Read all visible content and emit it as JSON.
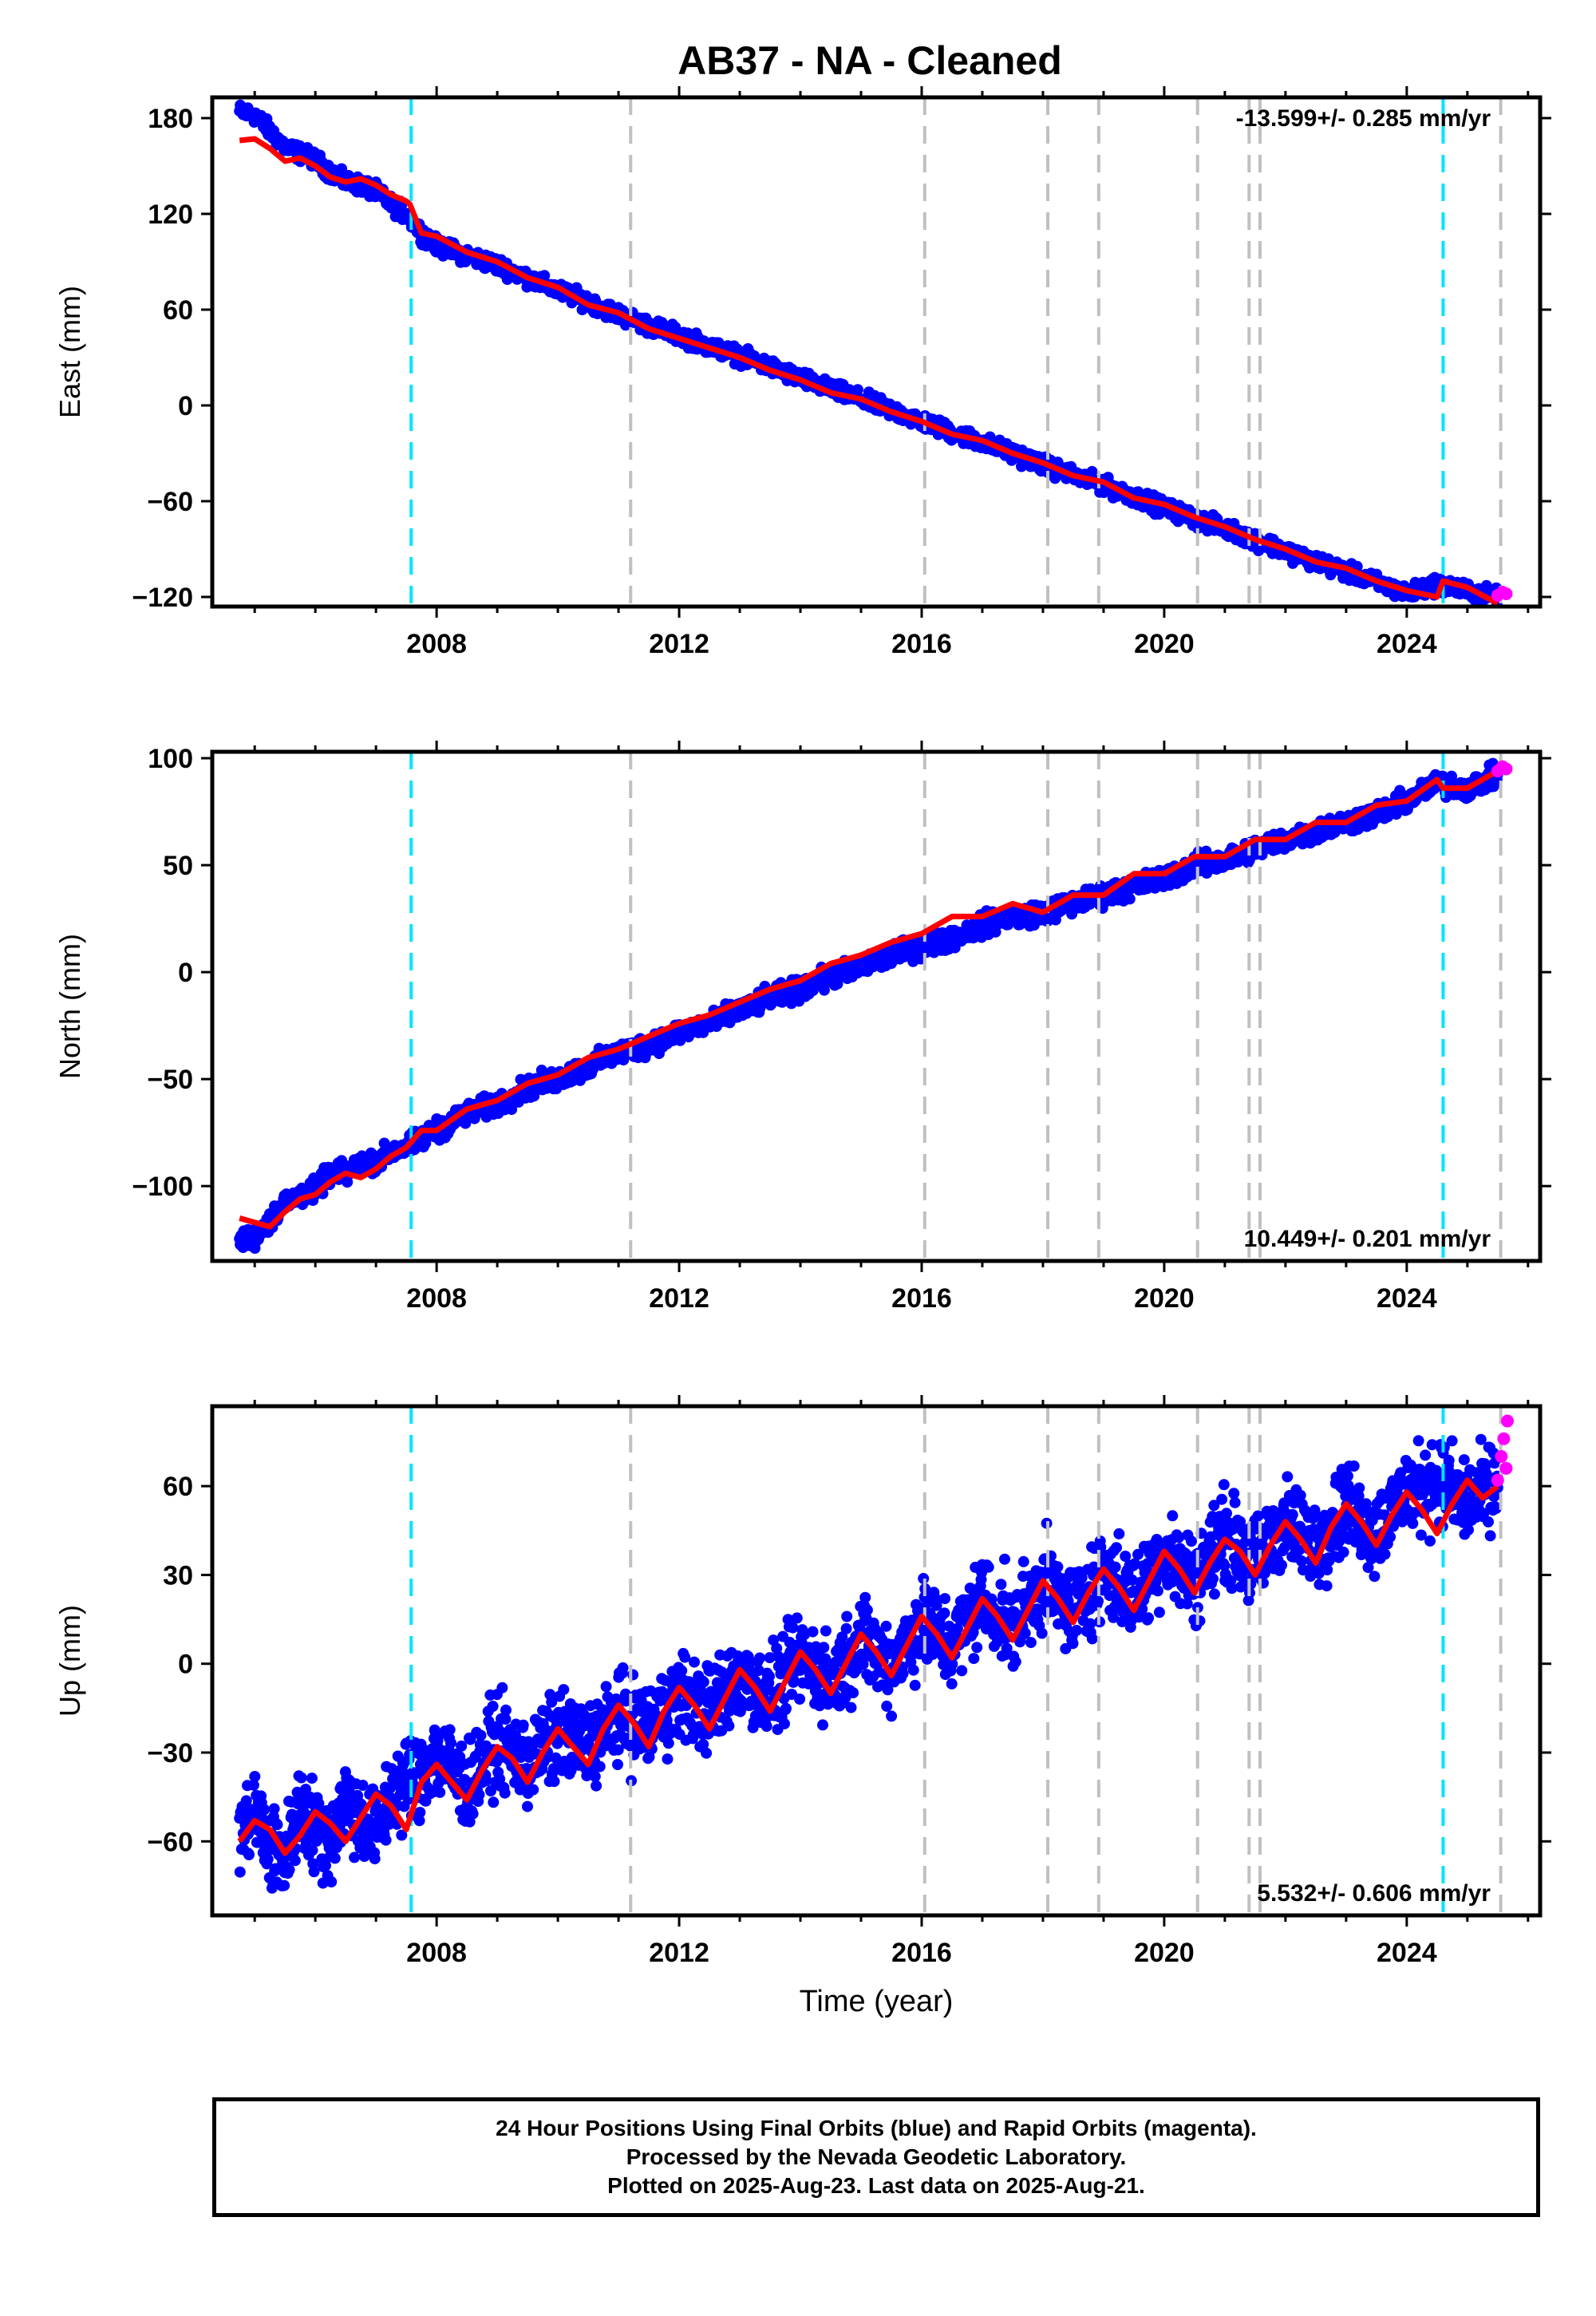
{
  "title": "AB37  - NA - Cleaned",
  "colors": {
    "final_orbits": "#0000ff",
    "rapid_orbits": "#ff00ff",
    "model": "#ff0000",
    "antenna_change": "#00e5ff",
    "equipment_change": "#c0c0c0"
  },
  "chart_data": [
    {
      "type": "scatter",
      "component": "East",
      "ylabel": "East (mm)",
      "xlabel": "",
      "xlim": [
        2004.3,
        2026.2
      ],
      "ylim": [
        -126,
        193
      ],
      "yticks": [
        -120,
        -60,
        0,
        60,
        120,
        180
      ],
      "xticks": [
        2008,
        2012,
        2016,
        2020,
        2024
      ],
      "rate_label": "-13.599+/- 0.285 mm/yr",
      "rate_label_position": "top-right",
      "grid": false,
      "series": [
        {
          "role": "final_orbits",
          "x": [
            2004.75,
            2005.0,
            2005.25,
            2005.5,
            2005.75,
            2006.0,
            2006.25,
            2006.5,
            2006.75,
            2007.0,
            2007.25,
            2007.5,
            2007.75,
            2008.0,
            2008.5,
            2009.0,
            2009.5,
            2010.0,
            2010.5,
            2011.0,
            2011.5,
            2012.0,
            2012.5,
            2013.0,
            2013.5,
            2014.0,
            2014.5,
            2015.0,
            2015.5,
            2016.0,
            2016.5,
            2017.0,
            2017.5,
            2018.0,
            2018.5,
            2019.0,
            2019.5,
            2020.0,
            2020.5,
            2021.0,
            2021.5,
            2022.0,
            2022.5,
            2023.0,
            2023.5,
            2024.0,
            2024.5,
            2025.0,
            2025.5
          ],
          "values": [
            184,
            182,
            172,
            162,
            158,
            154,
            146,
            140,
            138,
            134,
            126,
            120,
            108,
            100,
            94,
            88,
            80,
            72,
            65,
            57,
            50,
            44,
            37,
            31,
            24,
            17,
            10,
            4,
            -3,
            -10,
            -17,
            -23,
            -30,
            -37,
            -44,
            -50,
            -57,
            -64,
            -71,
            -77,
            -84,
            -91,
            -98,
            -104,
            -111,
            -118,
            -112,
            -116,
            -120
          ]
        },
        {
          "role": "rapid_orbits",
          "x": [
            2025.5,
            2025.58,
            2025.64
          ],
          "values": [
            -119,
            -117,
            -118
          ]
        },
        {
          "role": "model",
          "x": [
            2004.75,
            2005.0,
            2005.25,
            2005.5,
            2005.75,
            2006.0,
            2006.25,
            2006.5,
            2006.75,
            2007.0,
            2007.25,
            2007.5,
            2007.56,
            2007.75,
            2008.0,
            2008.5,
            2009.0,
            2009.5,
            2010.0,
            2010.5,
            2011.0,
            2011.5,
            2012.0,
            2012.5,
            2013.0,
            2013.5,
            2014.0,
            2014.5,
            2015.0,
            2015.5,
            2016.0,
            2016.5,
            2017.0,
            2017.5,
            2018.0,
            2018.5,
            2019.0,
            2019.5,
            2020.0,
            2020.5,
            2021.0,
            2021.5,
            2022.0,
            2022.5,
            2023.0,
            2023.5,
            2024.0,
            2024.5,
            2024.6,
            2025.0,
            2025.5
          ],
          "values": [
            166,
            167,
            161,
            153,
            155,
            150,
            143,
            140,
            142,
            138,
            132,
            128,
            126,
            108,
            106,
            96,
            90,
            80,
            74,
            63,
            58,
            48,
            42,
            36,
            30,
            22,
            16,
            8,
            4,
            -4,
            -10,
            -18,
            -22,
            -30,
            -36,
            -44,
            -48,
            -58,
            -62,
            -70,
            -76,
            -84,
            -90,
            -98,
            -102,
            -110,
            -116,
            -120,
            -110,
            -114,
            -124
          ]
        }
      ]
    },
    {
      "type": "scatter",
      "component": "North",
      "ylabel": "North (mm)",
      "xlabel": "",
      "xlim": [
        2004.3,
        2026.2
      ],
      "ylim": [
        -135,
        103
      ],
      "yticks": [
        -100,
        -50,
        0,
        50,
        100
      ],
      "xticks": [
        2008,
        2012,
        2016,
        2020,
        2024
      ],
      "rate_label": "10.449+/- 0.201 mm/yr",
      "rate_label_position": "bottom-right",
      "grid": false,
      "series": [
        {
          "role": "final_orbits",
          "x": [
            2004.75,
            2005.0,
            2005.25,
            2005.5,
            2005.75,
            2006.0,
            2006.25,
            2006.5,
            2006.75,
            2007.0,
            2007.25,
            2007.5,
            2007.75,
            2008.0,
            2008.5,
            2009.0,
            2009.5,
            2010.0,
            2010.5,
            2011.0,
            2011.5,
            2012.0,
            2012.5,
            2013.0,
            2013.5,
            2014.0,
            2014.5,
            2015.0,
            2015.5,
            2016.0,
            2016.5,
            2017.0,
            2017.5,
            2018.0,
            2018.5,
            2019.0,
            2019.5,
            2020.0,
            2020.5,
            2021.0,
            2021.5,
            2022.0,
            2022.5,
            2023.0,
            2023.5,
            2024.0,
            2024.5,
            2025.0,
            2025.5
          ],
          "values": [
            -126,
            -124,
            -116,
            -108,
            -104,
            -102,
            -94,
            -94,
            -90,
            -88,
            -84,
            -82,
            -78,
            -74,
            -66,
            -62,
            -54,
            -50,
            -44,
            -38,
            -34,
            -28,
            -24,
            -18,
            -12,
            -8,
            -2,
            2,
            8,
            12,
            16,
            22,
            26,
            28,
            32,
            36,
            40,
            44,
            50,
            52,
            58,
            62,
            66,
            70,
            74,
            80,
            88,
            86,
            92
          ]
        },
        {
          "role": "rapid_orbits",
          "x": [
            2025.5,
            2025.58,
            2025.64
          ],
          "values": [
            94,
            96,
            95
          ]
        },
        {
          "role": "model",
          "x": [
            2004.75,
            2005.0,
            2005.25,
            2005.5,
            2005.75,
            2006.0,
            2006.25,
            2006.5,
            2006.75,
            2007.0,
            2007.25,
            2007.5,
            2007.56,
            2007.75,
            2008.0,
            2008.5,
            2009.0,
            2009.5,
            2010.0,
            2010.5,
            2011.0,
            2011.5,
            2012.0,
            2012.5,
            2013.0,
            2013.5,
            2014.0,
            2014.5,
            2015.0,
            2015.5,
            2016.0,
            2016.5,
            2017.0,
            2017.5,
            2018.0,
            2018.5,
            2019.0,
            2019.5,
            2020.0,
            2020.5,
            2021.0,
            2021.5,
            2022.0,
            2022.5,
            2023.0,
            2023.5,
            2024.0,
            2024.5,
            2024.6,
            2025.0,
            2025.5
          ],
          "values": [
            -115,
            -117,
            -119,
            -112,
            -106,
            -104,
            -98,
            -94,
            -96,
            -92,
            -86,
            -82,
            -80,
            -74,
            -74,
            -64,
            -60,
            -52,
            -48,
            -40,
            -36,
            -30,
            -24,
            -20,
            -14,
            -8,
            -4,
            4,
            8,
            14,
            18,
            26,
            26,
            32,
            28,
            36,
            36,
            46,
            46,
            54,
            54,
            62,
            62,
            70,
            70,
            78,
            80,
            90,
            86,
            86,
            94
          ]
        }
      ]
    },
    {
      "type": "scatter",
      "component": "Up",
      "ylabel": "Up (mm)",
      "xlabel": "Time (year)",
      "xlim": [
        2004.3,
        2026.2
      ],
      "ylim": [
        -85,
        87
      ],
      "yticks": [
        -60,
        -30,
        0,
        30,
        60
      ],
      "xticks": [
        2008,
        2012,
        2016,
        2020,
        2024
      ],
      "rate_label": "5.532+/- 0.606 mm/yr",
      "rate_label_position": "bottom-right",
      "grid": false,
      "series": [
        {
          "role": "final_orbits",
          "x": [
            2004.75,
            2005.0,
            2005.25,
            2005.5,
            2005.75,
            2006.0,
            2006.25,
            2006.5,
            2006.75,
            2007.0,
            2007.25,
            2007.5,
            2007.75,
            2008.0,
            2008.5,
            2009.0,
            2009.5,
            2010.0,
            2010.5,
            2011.0,
            2011.5,
            2012.0,
            2012.5,
            2013.0,
            2013.5,
            2014.0,
            2014.5,
            2015.0,
            2015.5,
            2016.0,
            2016.5,
            2017.0,
            2017.5,
            2018.0,
            2018.5,
            2019.0,
            2019.5,
            2020.0,
            2020.5,
            2021.0,
            2021.5,
            2022.0,
            2022.5,
            2023.0,
            2023.5,
            2024.0,
            2024.5,
            2025.0,
            2025.5
          ],
          "values": [
            -58,
            -50,
            -62,
            -66,
            -48,
            -56,
            -60,
            -46,
            -52,
            -58,
            -44,
            -40,
            -36,
            -30,
            -42,
            -26,
            -34,
            -24,
            -28,
            -18,
            -22,
            -10,
            -16,
            -4,
            -12,
            2,
            -6,
            8,
            0,
            14,
            6,
            22,
            12,
            28,
            18,
            32,
            22,
            38,
            28,
            44,
            34,
            48,
            40,
            54,
            44,
            58,
            62,
            54,
            60
          ]
        },
        {
          "role": "rapid_orbits",
          "x": [
            2025.5,
            2025.56,
            2025.6,
            2025.64,
            2025.66
          ],
          "values": [
            62,
            70,
            76,
            66,
            82
          ]
        },
        {
          "role": "model",
          "x": [
            2004.75,
            2005.0,
            2005.25,
            2005.5,
            2005.75,
            2006.0,
            2006.25,
            2006.5,
            2006.75,
            2007.0,
            2007.25,
            2007.5,
            2007.75,
            2008.0,
            2008.25,
            2008.5,
            2008.75,
            2009.0,
            2009.25,
            2009.5,
            2009.75,
            2010.0,
            2010.25,
            2010.5,
            2010.75,
            2011.0,
            2011.25,
            2011.5,
            2011.75,
            2012.0,
            2012.25,
            2012.5,
            2012.75,
            2013.0,
            2013.25,
            2013.5,
            2013.75,
            2014.0,
            2014.25,
            2014.5,
            2014.75,
            2015.0,
            2015.25,
            2015.5,
            2015.75,
            2016.0,
            2016.25,
            2016.5,
            2016.75,
            2017.0,
            2017.25,
            2017.5,
            2017.75,
            2018.0,
            2018.25,
            2018.5,
            2018.75,
            2019.0,
            2019.25,
            2019.5,
            2019.75,
            2020.0,
            2020.25,
            2020.5,
            2020.75,
            2021.0,
            2021.25,
            2021.5,
            2021.75,
            2022.0,
            2022.25,
            2022.5,
            2022.75,
            2023.0,
            2023.25,
            2023.5,
            2023.75,
            2024.0,
            2024.25,
            2024.5,
            2024.75,
            2025.0,
            2025.25,
            2025.5
          ],
          "values": [
            -60,
            -53,
            -56,
            -64,
            -58,
            -50,
            -54,
            -60,
            -52,
            -44,
            -48,
            -56,
            -40,
            -34,
            -40,
            -46,
            -36,
            -28,
            -32,
            -40,
            -30,
            -22,
            -28,
            -34,
            -22,
            -14,
            -20,
            -28,
            -16,
            -8,
            -14,
            -22,
            -12,
            -2,
            -8,
            -16,
            -6,
            4,
            -2,
            -10,
            0,
            10,
            4,
            -4,
            6,
            16,
            10,
            2,
            12,
            22,
            16,
            8,
            18,
            28,
            22,
            14,
            24,
            32,
            26,
            18,
            28,
            38,
            32,
            24,
            34,
            42,
            38,
            30,
            40,
            48,
            42,
            34,
            46,
            54,
            48,
            40,
            50,
            58,
            52,
            44,
            54,
            62,
            56,
            60
          ]
        }
      ]
    }
  ],
  "antenna_changes": [
    2007.58,
    2024.6
  ],
  "equipment_changes": [
    2011.2,
    2016.05,
    2018.08,
    2018.92,
    2020.55,
    2021.4,
    2021.58,
    2025.55
  ],
  "footer": {
    "line1": "24 Hour Positions Using Final Orbits (blue) and Rapid Orbits (magenta).",
    "line2": "Processed by the Nevada Geodetic Laboratory.",
    "line3": "Plotted on 2025-Aug-23. Last data on 2025-Aug-21."
  }
}
